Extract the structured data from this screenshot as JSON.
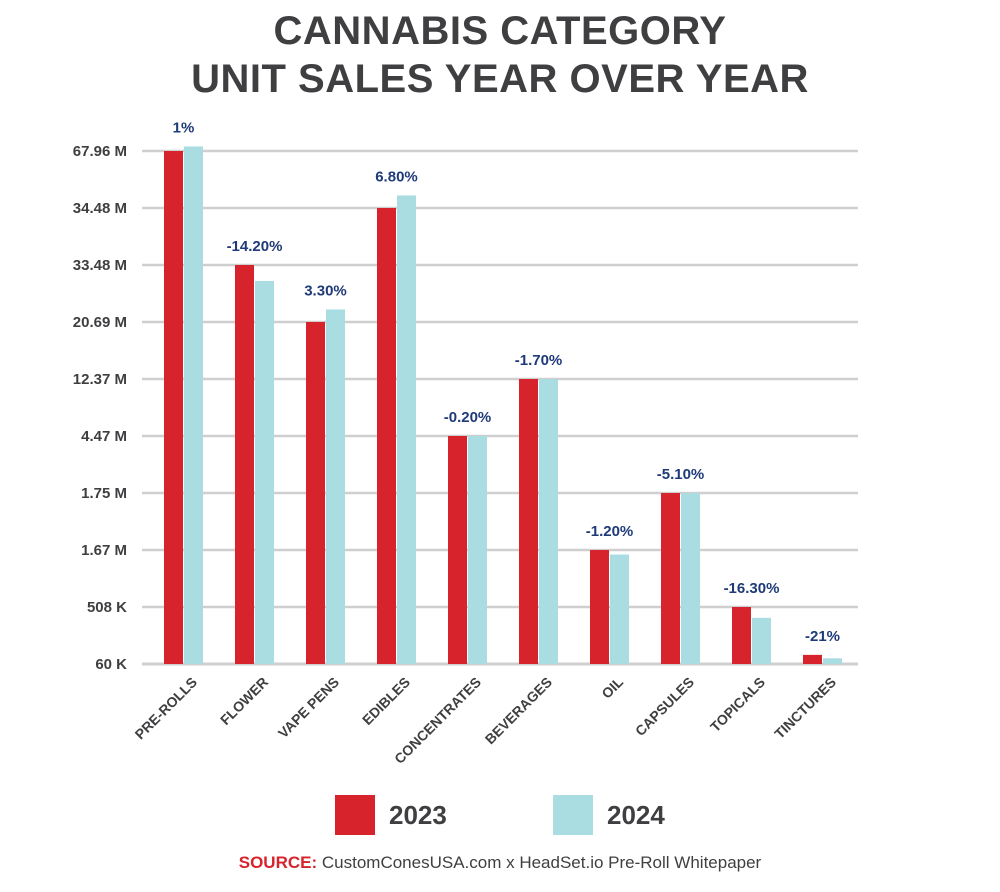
{
  "title": {
    "line1": "CANNABIS CATEGORY",
    "line2": "UNIT SALES YEAR OVER YEAR"
  },
  "colors": {
    "series_2023": "#d7242c",
    "series_2024": "#a9dde2",
    "label": "#1f3a78",
    "grid": "#cfcfcf",
    "text": "#3f3f42"
  },
  "chart_data": {
    "type": "bar",
    "title": "CANNABIS CATEGORY UNIT SALES YEAR OVER YEAR",
    "xlabel": "",
    "ylabel": "",
    "y_scale": "categorical (tick labels evenly spaced, non-linear)",
    "y_ticks": [
      "60 K",
      "508 K",
      "1.67 M",
      "1.75 M",
      "4.47 M",
      "12.37 M",
      "20.69 M",
      "33.48 M",
      "34.48 M",
      "67.96 M"
    ],
    "categories": [
      "PRE-ROLLS",
      "FLOWER",
      "VAPE PENS",
      "EDIBLES",
      "CONCENTRATES",
      "BEVERAGES",
      "OIL",
      "CAPSULES",
      "TOPICALS",
      "TINCTURES"
    ],
    "series": [
      {
        "name": "2023",
        "values": [
          9.0,
          7.0,
          6.0,
          8.0,
          4.0,
          5.0,
          2.0,
          3.0,
          1.0,
          0.16
        ]
      },
      {
        "name": "2024",
        "values": [
          9.08,
          6.72,
          6.22,
          8.22,
          4.0,
          5.0,
          1.92,
          3.0,
          0.81,
          0.1
        ]
      }
    ],
    "data_labels": [
      "1%",
      "-14.20%",
      "3.30%",
      "6.80%",
      "-0.20%",
      "-1.70%",
      "-1.20%",
      "-5.10%",
      "-16.30%",
      "-21%"
    ],
    "legend": {
      "position": "bottom",
      "entries": [
        "2023",
        "2024"
      ]
    },
    "grid": true
  },
  "source": {
    "key": "SOURCE:",
    "text": " CustomConesUSA.com x HeadSet.io Pre-Roll Whitepaper"
  }
}
